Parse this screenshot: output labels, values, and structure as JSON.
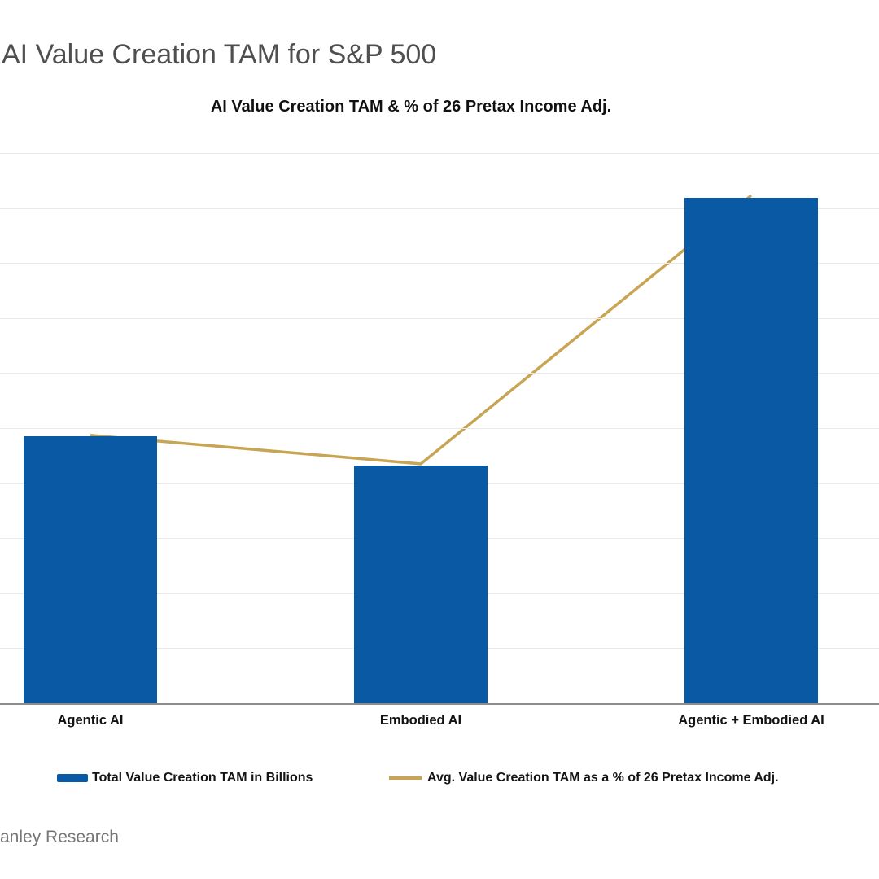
{
  "page": {
    "title": "AI Value Creation TAM for S&P 500",
    "footer_source": "anley Research"
  },
  "chart": {
    "subtitle": "AI Value Creation TAM & % of 26 Pretax Income Adj."
  },
  "legend": [
    {
      "type": "bar",
      "label": "Total Value Creation TAM in Billions"
    },
    {
      "type": "line",
      "label": "Avg. Value Creation TAM as a % of 26 Pretax Income Adj."
    }
  ],
  "colors": {
    "bar_blue": "#0a59a4",
    "line_gold": "#c8a554",
    "gridline_gray": "#e9e9e9",
    "axis_gray": "#8c8c8c",
    "title_gray": "#4f4f4f",
    "footer_gray": "#767676",
    "text_black": "#121212"
  },
  "chart_data": {
    "type": "bar",
    "subtype": "bar-and-line-combo",
    "title": "AI Value Creation TAM & % of 26 Pretax Income Adj.",
    "categories": [
      "Agentic AI",
      "Embodied AI",
      "Agentic + Embodied AI"
    ],
    "series": [
      {
        "name": "Total Value Creation TAM in Billions",
        "type": "bar",
        "values_gridline_units": [
          4.85,
          4.32,
          9.19
        ]
      },
      {
        "name": "Avg. Value Creation TAM as a % of 26 Pretax Income Adj.",
        "type": "line",
        "values_gridline_units": [
          4.87,
          4.35,
          9.23
        ]
      }
    ],
    "ylim": [
      0,
      10
    ],
    "y_axis_unit": "gridline-intervals (axis tick labels cropped out of view)",
    "y_axis_tick_labels_visible": false,
    "gridlines": "horizontal",
    "legend_position": "bottom"
  }
}
